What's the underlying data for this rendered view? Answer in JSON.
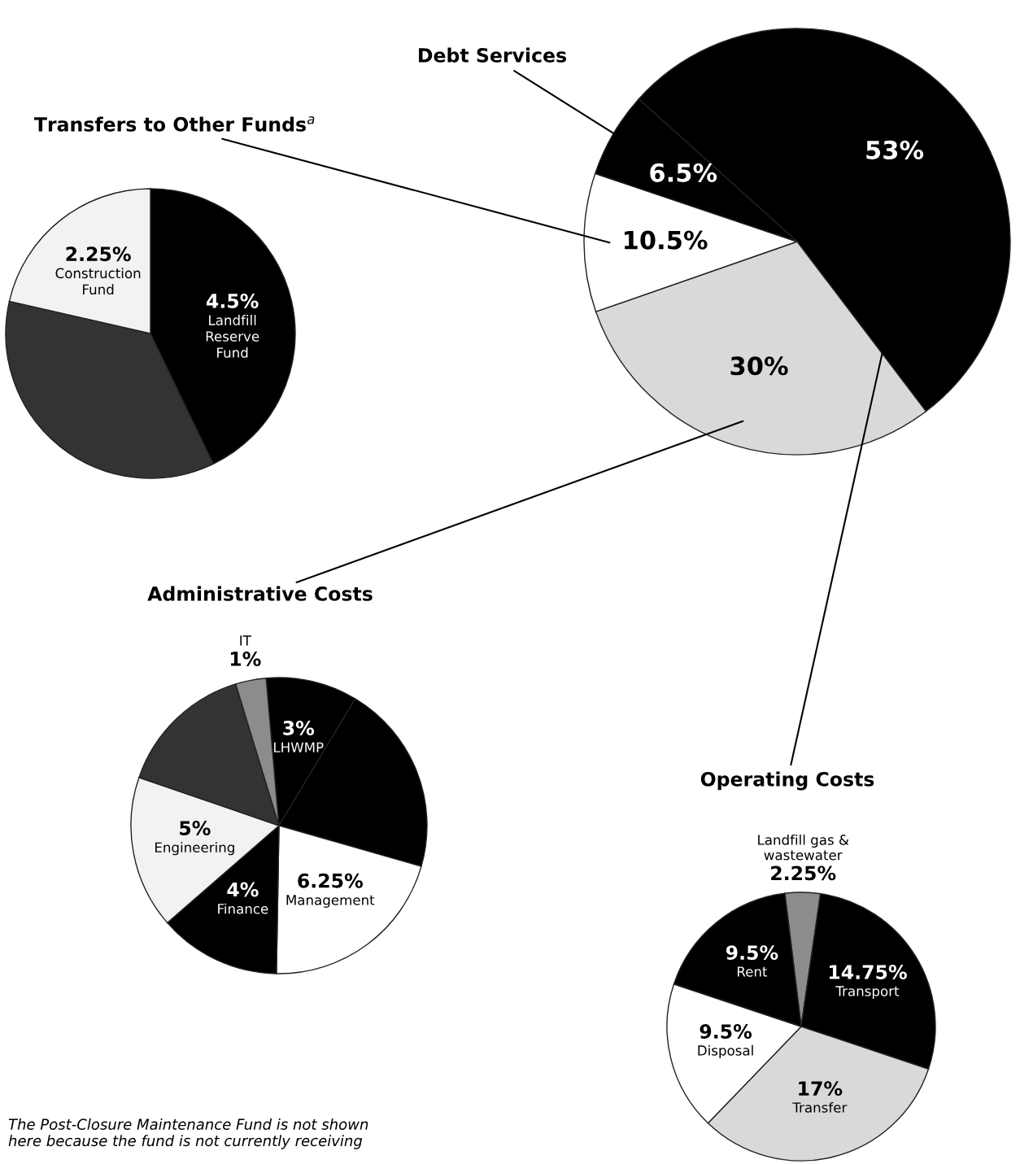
{
  "chart_data": [
    {
      "type": "pie",
      "categories": [
        "Operating Costs",
        "Administrative Costs",
        "Transfers to Other Funds$^{a}$",
        "Debt Services"
      ],
      "values": [
        53,
        30,
        10.5,
        6.5
      ],
      "colors": [
        "#000000",
        "#d9d9d9",
        "#ffffff",
        "#000000"
      ],
      "value_labels": [
        "53%",
        "30%",
        "10.5%",
        "6.5%"
      ],
      "annotations": [
        "The Post-Closure Maintenance Fund is not shown\nhere because the fund is not currently receiving"
      ]
    },
    {
      "type": "pie",
      "categories": [
        "Landfill\nReserve\nFund",
        null,
        "Construction\nFund"
      ],
      "values": [
        4.5,
        3.75,
        2.25
      ],
      "colors": [
        "#000000",
        "#333333",
        "#f2f2f2"
      ],
      "value_labels": [
        "4.5%",
        null,
        "2.25%"
      ]
    },
    {
      "type": "pie",
      "categories": [
        "LHWMP",
        null,
        "Management",
        "Finance",
        "Engineering",
        null,
        "IT"
      ],
      "values": [
        3,
        6.25,
        6.25,
        4,
        5,
        4.5,
        1
      ],
      "colors": [
        "#000000",
        "#000000",
        "#ffffff",
        "#000000",
        "#f2f2f2",
        "#333333",
        "#8c8c8c"
      ],
      "value_labels": [
        "3%",
        null,
        "6.25%",
        "4%",
        "5%",
        null,
        "1%"
      ]
    },
    {
      "type": "pie",
      "categories": [
        "Landfill gas &\nwastewater",
        "Transport",
        "Transfer",
        "Disposal",
        "Rent"
      ],
      "values": [
        2.25,
        14.75,
        17,
        9.5,
        9.5
      ],
      "colors": [
        "#8c8c8c",
        "#000000",
        "#d9d9d9",
        "#ffffff",
        "#000000"
      ],
      "value_labels": [
        "2.25%",
        "14.75%",
        "17%",
        "9.5%",
        "9.5%"
      ]
    }
  ]
}
